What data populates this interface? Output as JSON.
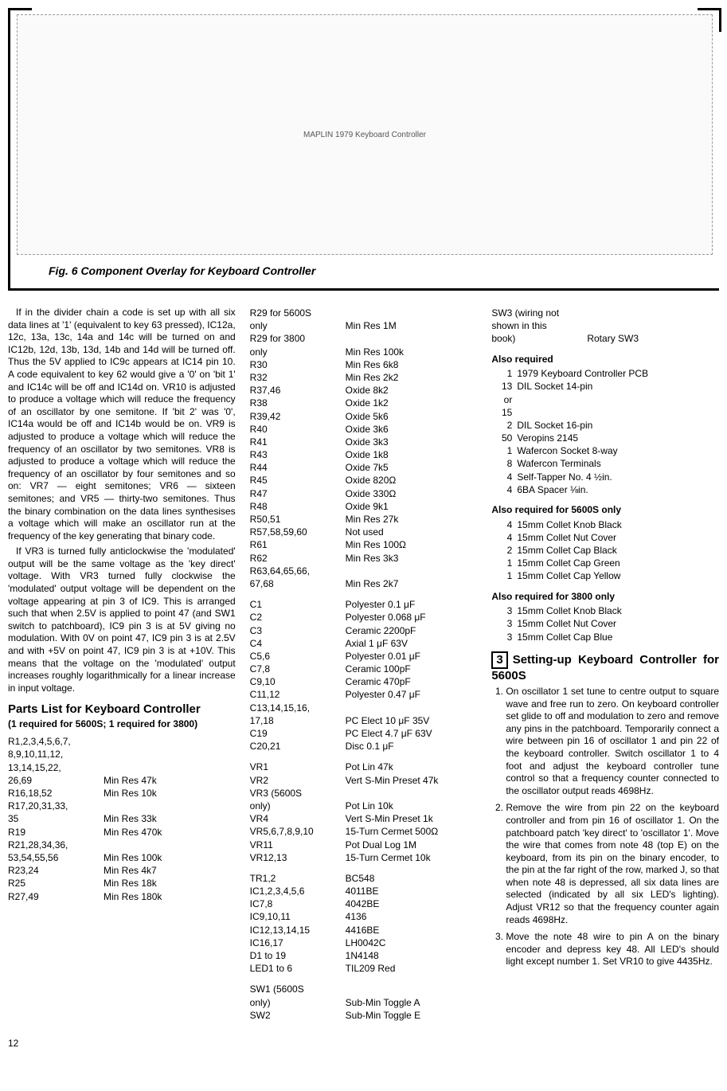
{
  "figure": {
    "schematic_label": "MAPLIN 1979 Keyboard Controller",
    "caption": "Fig. 6   Component Overlay for Keyboard Controller"
  },
  "col1": {
    "para1": "If in the divider chain a code is set up with all six data lines at '1' (equivalent to key 63 pressed), IC12a, 12c, 13a, 13c, 14a and 14c will be turned on and IC12b, 12d, 13b, 13d, 14b and 14d will be turned off. Thus the 5V applied to IC9c appears at IC14 pin 10. A code equivalent to key 62 would give a '0' on 'bit 1' and IC14c will be off and IC14d on. VR10 is adjusted to produce a voltage which will reduce the frequency of an oscillator by one semitone. If 'bit 2' was '0', IC14a would be off and IC14b would be on. VR9 is adjusted to produce a voltage which will reduce the frequency of an oscillator by two semitones. VR8 is adjusted to produce a voltage which will reduce the frequency of an oscillator by four semitones and so on: VR7 — eight semitones; VR6 — sixteen semitones; and VR5 — thirty-two semitones. Thus the binary combination on the data lines synthesises a voltage which will make an oscillator run at the frequency of the key generating that binary code.",
    "para2": "If VR3 is turned fully anticlockwise the 'modulated' output will be the same voltage as the 'key direct' voltage. With VR3 turned fully clockwise the 'modulated' output voltage will be dependent on the voltage appearing at pin 3 of IC9. This is arranged such that when 2.5V is applied to point 47 (and SW1 switch to patchboard), IC9 pin 3 is at 5V giving no modulation. With 0V on point 47, IC9 pin 3 is at 2.5V and with +5V on point 47, IC9 pin 3 is at +10V. This means that the voltage on the 'modulated' output increases roughly logarithmically for a linear increase in input voltage.",
    "parts_heading": "Parts List for Keyboard Controller",
    "parts_sub": "(1 required for 5600S; 1 required for 3800)",
    "parts1": [
      {
        "k": "R1,2,3,4,5,6,7,\n  8,9,10,11,12,\n  13,14,15,22,\n  26,69",
        "v": "Min Res 47k"
      },
      {
        "k": "R16,18,52",
        "v": "Min Res 10k"
      },
      {
        "k": "R17,20,31,33,\n  35",
        "v": "Min Res 33k"
      },
      {
        "k": "R19",
        "v": "Min Res 470k"
      },
      {
        "k": "R21,28,34,36,\n  53,54,55,56",
        "v": "Min Res 100k"
      },
      {
        "k": "R23,24",
        "v": "Min Res 4k7"
      },
      {
        "k": "R25",
        "v": "Min Res 18k"
      },
      {
        "k": "R27,49",
        "v": "Min Res 180k"
      }
    ]
  },
  "col2": {
    "parts2": [
      {
        "k": "R29 for 5600S\n  only",
        "v": "Min Res 1M"
      },
      {
        "k": "R29 for 3800\n  only",
        "v": "Min Res 100k"
      },
      {
        "k": "R30",
        "v": "Min Res 6k8"
      },
      {
        "k": "R32",
        "v": "Min Res 2k2"
      },
      {
        "k": "R37,46",
        "v": "Oxide 8k2"
      },
      {
        "k": "R38",
        "v": "Oxide 1k2"
      },
      {
        "k": "R39,42",
        "v": "Oxide 5k6"
      },
      {
        "k": "R40",
        "v": "Oxide 3k6"
      },
      {
        "k": "R41",
        "v": "Oxide 3k3"
      },
      {
        "k": "R43",
        "v": "Oxide 1k8"
      },
      {
        "k": "R44",
        "v": "Oxide 7k5"
      },
      {
        "k": "R45",
        "v": "Oxide 820Ω"
      },
      {
        "k": "R47",
        "v": "Oxide 330Ω"
      },
      {
        "k": "R48",
        "v": "Oxide 9k1"
      },
      {
        "k": "R50,51",
        "v": "Min Res 27k"
      },
      {
        "k": "R57,58,59,60",
        "v": "Not used"
      },
      {
        "k": "R61",
        "v": "Min Res 100Ω"
      },
      {
        "k": "R62",
        "v": "Min Res 3k3"
      },
      {
        "k": "R63,64,65,66,\n  67,68",
        "v": "Min Res 2k7"
      }
    ],
    "caps": [
      {
        "k": "C1",
        "v": "Polyester 0.1 μF"
      },
      {
        "k": "C2",
        "v": "Polyester 0.068 μF"
      },
      {
        "k": "C3",
        "v": "Ceramic 2200pF"
      },
      {
        "k": "C4",
        "v": "Axial 1 μF 63V"
      },
      {
        "k": "C5,6",
        "v": "Polyester 0.01 μF"
      },
      {
        "k": "C7,8",
        "v": "Ceramic 100pF"
      },
      {
        "k": "C9,10",
        "v": "Ceramic 470pF"
      },
      {
        "k": "C11,12",
        "v": "Polyester 0.47 μF"
      },
      {
        "k": "C13,14,15,16,\n  17,18",
        "v": "PC Elect 10 μF 35V"
      },
      {
        "k": "C19",
        "v": "PC Elect 4.7 μF 63V"
      },
      {
        "k": "C20,21",
        "v": "Disc 0.1 μF"
      }
    ],
    "vrs": [
      {
        "k": "VR1",
        "v": "Pot Lin 47k"
      },
      {
        "k": "VR2",
        "v": "Vert S-Min Preset 47k"
      },
      {
        "k": "VR3 (5600S\n  only)",
        "v": "Pot Lin 10k"
      },
      {
        "k": "VR4",
        "v": "Vert S-Min Preset 1k"
      },
      {
        "k": "VR5,6,7,8,9,10",
        "v": "15-Turn Cermet 500Ω"
      },
      {
        "k": "VR11",
        "v": "Pot Dual Log 1M"
      },
      {
        "k": "VR12,13",
        "v": "15-Turn Cermet 10k"
      }
    ],
    "ics": [
      {
        "k": "TR1,2",
        "v": "BC548"
      },
      {
        "k": "IC1,2,3,4,5,6",
        "v": "4011BE"
      },
      {
        "k": "IC7,8",
        "v": "4042BE"
      },
      {
        "k": "IC9,10,11",
        "v": "4136"
      },
      {
        "k": "IC12,13,14,15",
        "v": "4416BE"
      },
      {
        "k": "IC16,17",
        "v": "LH0042C"
      },
      {
        "k": "D1 to 19",
        "v": "1N4148"
      },
      {
        "k": "LED1 to 6",
        "v": "TIL209 Red"
      }
    ],
    "sw": [
      {
        "k": "SW1 (5600S\n  only)",
        "v": "Sub-Min Toggle A"
      },
      {
        "k": "SW2",
        "v": "Sub-Min Toggle E"
      }
    ]
  },
  "col3": {
    "swtop": [
      {
        "k": "SW3 (wiring not\n  shown in this\n  book)",
        "v": "Rotary SW3"
      }
    ],
    "also1_head": "Also required",
    "also1": [
      {
        "q": "1",
        "t": "1979 Keyboard Controller PCB"
      },
      {
        "q": "13 or 15",
        "t": "DIL Socket 14-pin"
      },
      {
        "q": "2",
        "t": "DIL Socket 16-pin"
      },
      {
        "q": "50",
        "t": "Veropins 2145"
      },
      {
        "q": "1",
        "t": "Wafercon Socket 8-way"
      },
      {
        "q": "8",
        "t": "Wafercon Terminals"
      },
      {
        "q": "4",
        "t": "Self-Tapper No. 4 ½in."
      },
      {
        "q": "4",
        "t": "6BA Spacer ⅛in."
      }
    ],
    "also2_head": "Also required for 5600S only",
    "also2": [
      {
        "q": "4",
        "t": "15mm Collet Knob Black"
      },
      {
        "q": "4",
        "t": "15mm Collet Nut Cover"
      },
      {
        "q": "2",
        "t": "15mm Collet Cap Black"
      },
      {
        "q": "1",
        "t": "15mm Collet Cap Green"
      },
      {
        "q": "1",
        "t": "15mm Collet Cap Yellow"
      }
    ],
    "also3_head": "Also required for 3800 only",
    "also3": [
      {
        "q": "3",
        "t": "15mm Collet Knob Black"
      },
      {
        "q": "3",
        "t": "15mm Collet Nut Cover"
      },
      {
        "q": "3",
        "t": "15mm Collet Cap Blue"
      }
    ],
    "setup_num": "3",
    "setup_head": "Setting-up Keyboard Controller for 5600S",
    "steps": [
      "On oscillator 1 set tune to centre output to square wave and free run to zero. On keyboard controller set glide to off and modulation to zero and remove any pins in the patchboard. Temporarily connect a wire between pin 16 of oscillator 1 and pin 22 of the keyboard controller. Switch oscillator 1 to 4 foot and adjust the keyboard controller tune control so that a frequency counter connected to the oscillator output reads 4698Hz.",
      "Remove the wire from pin 22 on the keyboard controller and from pin 16 of oscillator 1. On the patchboard patch 'key direct' to 'oscillator 1'. Move the wire that comes from note 48 (top E) on the keyboard, from its pin on the binary encoder, to the pin at the far right of the row, marked J, so that when note 48 is depressed, all six data lines are selected (indicated by all six LED's lighting). Adjust VR12 so that the frequency counter again reads 4698Hz.",
      "Move the note 48 wire to pin A on the binary encoder and depress key 48. All LED's should light except number 1. Set VR10 to give 4435Hz."
    ]
  },
  "page": "12"
}
